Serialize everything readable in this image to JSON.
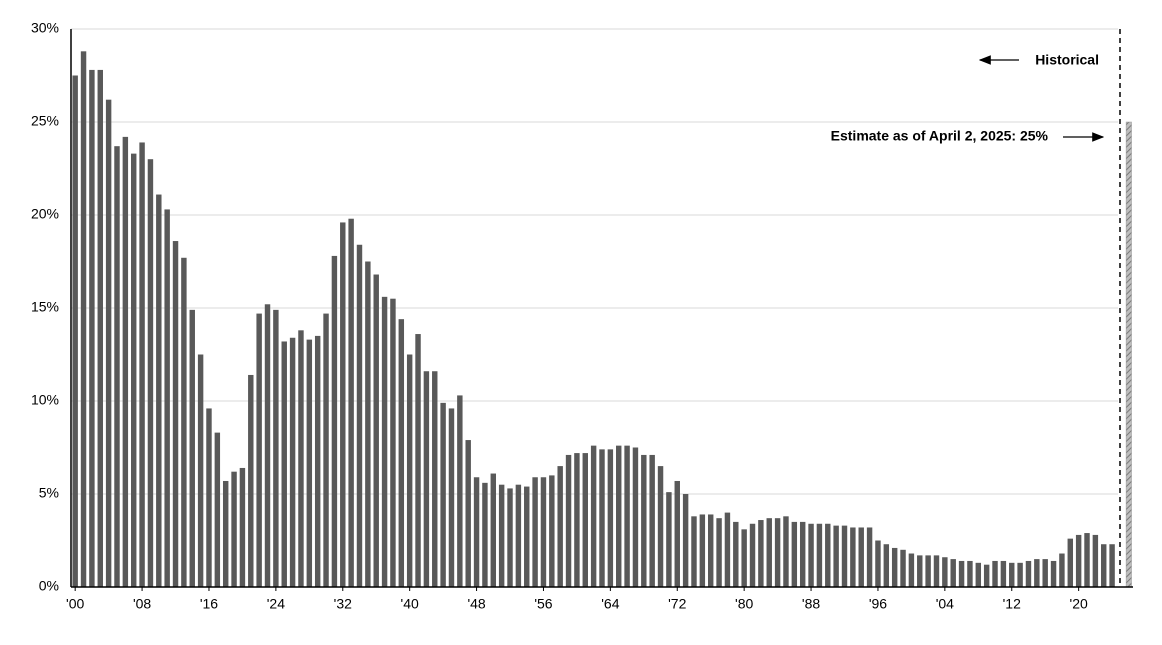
{
  "chart_data": {
    "type": "bar",
    "x": [
      1900,
      1901,
      1902,
      1903,
      1904,
      1905,
      1906,
      1907,
      1908,
      1909,
      1910,
      1911,
      1912,
      1913,
      1914,
      1915,
      1916,
      1917,
      1918,
      1919,
      1920,
      1921,
      1922,
      1923,
      1924,
      1925,
      1926,
      1927,
      1928,
      1929,
      1930,
      1931,
      1932,
      1933,
      1934,
      1935,
      1936,
      1937,
      1938,
      1939,
      1940,
      1941,
      1942,
      1943,
      1944,
      1945,
      1946,
      1947,
      1948,
      1949,
      1950,
      1951,
      1952,
      1953,
      1954,
      1955,
      1956,
      1957,
      1958,
      1959,
      1960,
      1961,
      1962,
      1963,
      1964,
      1965,
      1966,
      1967,
      1968,
      1969,
      1970,
      1971,
      1972,
      1973,
      1974,
      1975,
      1976,
      1977,
      1978,
      1979,
      1980,
      1981,
      1982,
      1983,
      1984,
      1985,
      1986,
      1987,
      1988,
      1989,
      1990,
      1991,
      1992,
      1993,
      1994,
      1995,
      1996,
      1997,
      1998,
      1999,
      2000,
      2001,
      2002,
      2003,
      2004,
      2005,
      2006,
      2007,
      2008,
      2009,
      2010,
      2011,
      2012,
      2013,
      2014,
      2015,
      2016,
      2017,
      2018,
      2019,
      2020,
      2021,
      2022,
      2023,
      2024
    ],
    "values": [
      27.5,
      28.8,
      27.8,
      27.8,
      26.2,
      23.7,
      24.2,
      23.3,
      23.9,
      23.0,
      21.1,
      20.3,
      18.6,
      17.7,
      14.9,
      12.5,
      9.6,
      8.3,
      5.7,
      6.2,
      6.4,
      11.4,
      14.7,
      15.2,
      14.9,
      13.2,
      13.4,
      13.8,
      13.3,
      13.5,
      14.7,
      17.8,
      19.6,
      19.8,
      18.4,
      17.5,
      16.8,
      15.6,
      15.5,
      14.4,
      12.5,
      13.6,
      11.6,
      11.6,
      9.9,
      9.6,
      10.3,
      7.9,
      5.9,
      5.6,
      6.1,
      5.5,
      5.3,
      5.5,
      5.4,
      5.9,
      5.9,
      6.0,
      6.5,
      7.1,
      7.2,
      7.2,
      7.6,
      7.4,
      7.4,
      7.6,
      7.6,
      7.5,
      7.1,
      7.1,
      6.5,
      5.1,
      5.7,
      5.0,
      3.8,
      3.9,
      3.9,
      3.7,
      4.0,
      3.5,
      3.1,
      3.4,
      3.6,
      3.7,
      3.7,
      3.8,
      3.5,
      3.5,
      3.4,
      3.4,
      3.4,
      3.3,
      3.3,
      3.2,
      3.2,
      3.2,
      2.5,
      2.3,
      2.1,
      2.0,
      1.8,
      1.7,
      1.7,
      1.7,
      1.6,
      1.5,
      1.4,
      1.4,
      1.3,
      1.2,
      1.4,
      1.4,
      1.3,
      1.3,
      1.4,
      1.5,
      1.5,
      1.4,
      1.8,
      2.6,
      2.8,
      2.9,
      2.8,
      2.3,
      2.3
    ],
    "color": "#595959",
    "estimate": {
      "x": 2026,
      "value": 25,
      "label": "Estimate as of April 2, 2025: 25%",
      "color": "#9a9a9a"
    },
    "annotation": "Historical",
    "xlim": [
      1899.5,
      2026.5
    ],
    "xticks": [
      {
        "value": 1900,
        "label": "'00"
      },
      {
        "value": 1908,
        "label": "'08"
      },
      {
        "value": 1916,
        "label": "'16"
      },
      {
        "value": 1924,
        "label": "'24"
      },
      {
        "value": 1932,
        "label": "'32"
      },
      {
        "value": 1940,
        "label": "'40"
      },
      {
        "value": 1948,
        "label": "'48"
      },
      {
        "value": 1956,
        "label": "'56"
      },
      {
        "value": 1964,
        "label": "'64"
      },
      {
        "value": 1972,
        "label": "'72"
      },
      {
        "value": 1980,
        "label": "'80"
      },
      {
        "value": 1988,
        "label": "'88"
      },
      {
        "value": 1996,
        "label": "'96"
      },
      {
        "value": 2004,
        "label": "'04"
      },
      {
        "value": 2012,
        "label": "'12"
      },
      {
        "value": 2020,
        "label": "'20"
      }
    ],
    "ylim": [
      0,
      30
    ],
    "yticks": [
      {
        "value": 0,
        "label": "0%"
      },
      {
        "value": 5,
        "label": "5%"
      },
      {
        "value": 10,
        "label": "10%"
      },
      {
        "value": 15,
        "label": "15%"
      },
      {
        "value": 20,
        "label": "20%"
      },
      {
        "value": 25,
        "label": "25%"
      },
      {
        "value": 30,
        "label": "30%"
      }
    ],
    "grid": true
  }
}
